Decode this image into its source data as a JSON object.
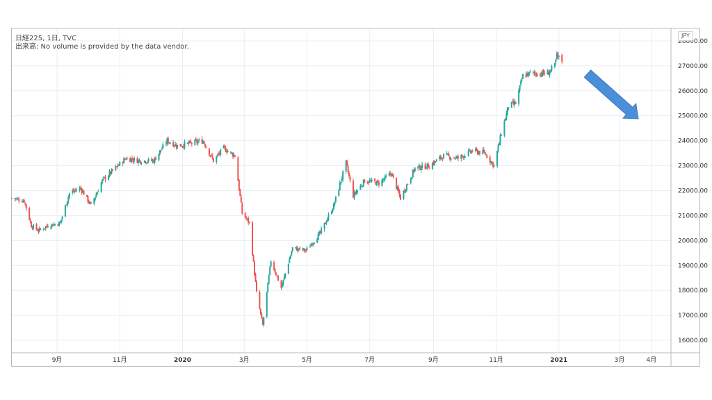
{
  "legend": {
    "title": "日経225, 1日, TVC",
    "volume_note": "出来高: No volume is provided by the data vendor."
  },
  "currency_badge": "JPY",
  "colors": {
    "up": "#26a69a",
    "down": "#ef5350",
    "grid": "#e6eff5",
    "annotation_arrow": "#4a8fd8"
  },
  "annotations": [
    {
      "type": "arrow",
      "direction": "down-right",
      "color": "#4a8fd8"
    }
  ],
  "chart_data": {
    "type": "candlestick",
    "title": "日経225, 1日, TVC",
    "xlabel": "",
    "ylabel": "",
    "ylim": [
      15500,
      28500
    ],
    "grid": true,
    "price_ticks": [
      "16000.00",
      "17000.00",
      "18000.00",
      "19000.00",
      "20000.00",
      "21000.00",
      "22000.00",
      "23000.00",
      "24000.00",
      "25000.00",
      "26000.00",
      "27000.00",
      "28000.00"
    ],
    "price_tick_values": [
      16000,
      17000,
      18000,
      19000,
      20000,
      21000,
      22000,
      23000,
      24000,
      25000,
      26000,
      27000,
      28000
    ],
    "time_ticks": [
      "9月",
      "11月",
      "2020",
      "3月",
      "5月",
      "7月",
      "9月",
      "11月",
      "2021",
      "3月",
      "4月"
    ],
    "time_tick_dates": [
      "2019-09-01",
      "2019-11-01",
      "2020-01-01",
      "2020-03-01",
      "2020-05-01",
      "2020-07-01",
      "2020-09-01",
      "2020-11-01",
      "2021-01-01",
      "2021-03-01",
      "2021-04-01"
    ],
    "xlim": [
      "2019-07-19",
      "2021-04-20"
    ],
    "series": [
      {
        "points": [
          [
            "2019-07-19",
            21700
          ],
          [
            "2019-07-31",
            21600
          ],
          [
            "2019-08-07",
            20600
          ],
          [
            "2019-08-14",
            20400
          ],
          [
            "2019-08-23",
            20600
          ],
          [
            "2019-09-04",
            20700
          ],
          [
            "2019-09-13",
            21900
          ],
          [
            "2019-09-24",
            22100
          ],
          [
            "2019-10-04",
            21400
          ],
          [
            "2019-10-15",
            22400
          ],
          [
            "2019-10-25",
            22800
          ],
          [
            "2019-11-07",
            23300
          ],
          [
            "2019-11-20",
            23200
          ],
          [
            "2019-12-04",
            23200
          ],
          [
            "2019-12-17",
            24000
          ],
          [
            "2019-12-27",
            23800
          ],
          [
            "2020-01-10",
            23900
          ],
          [
            "2020-01-21",
            24000
          ],
          [
            "2020-01-31",
            23200
          ],
          [
            "2020-02-10",
            23700
          ],
          [
            "2020-02-21",
            23400
          ],
          [
            "2020-02-28",
            21100
          ],
          [
            "2020-03-06",
            20700
          ],
          [
            "2020-03-13",
            17900
          ],
          [
            "2020-03-19",
            16600
          ],
          [
            "2020-03-27",
            19200
          ],
          [
            "2020-04-06",
            18100
          ],
          [
            "2020-04-17",
            19700
          ],
          [
            "2020-04-30",
            19600
          ],
          [
            "2020-05-14",
            20300
          ],
          [
            "2020-05-27",
            21400
          ],
          [
            "2020-06-08",
            23100
          ],
          [
            "2020-06-15",
            21800
          ],
          [
            "2020-06-26",
            22400
          ],
          [
            "2020-07-10",
            22300
          ],
          [
            "2020-07-22",
            22700
          ],
          [
            "2020-07-31",
            21700
          ],
          [
            "2020-08-14",
            22900
          ],
          [
            "2020-08-28",
            23000
          ],
          [
            "2020-09-11",
            23400
          ],
          [
            "2020-09-25",
            23300
          ],
          [
            "2020-10-09",
            23600
          ],
          [
            "2020-10-21",
            23500
          ],
          [
            "2020-10-30",
            23000
          ],
          [
            "2020-11-06",
            24300
          ],
          [
            "2020-11-13",
            25400
          ],
          [
            "2020-11-20",
            25500
          ],
          [
            "2020-11-27",
            26600
          ],
          [
            "2020-12-04",
            26700
          ],
          [
            "2020-12-14",
            26700
          ],
          [
            "2020-12-21",
            26700
          ],
          [
            "2020-12-28",
            27000
          ],
          [
            "2020-12-30",
            27400
          ],
          [
            "2021-01-04",
            27200
          ]
        ]
      }
    ]
  }
}
